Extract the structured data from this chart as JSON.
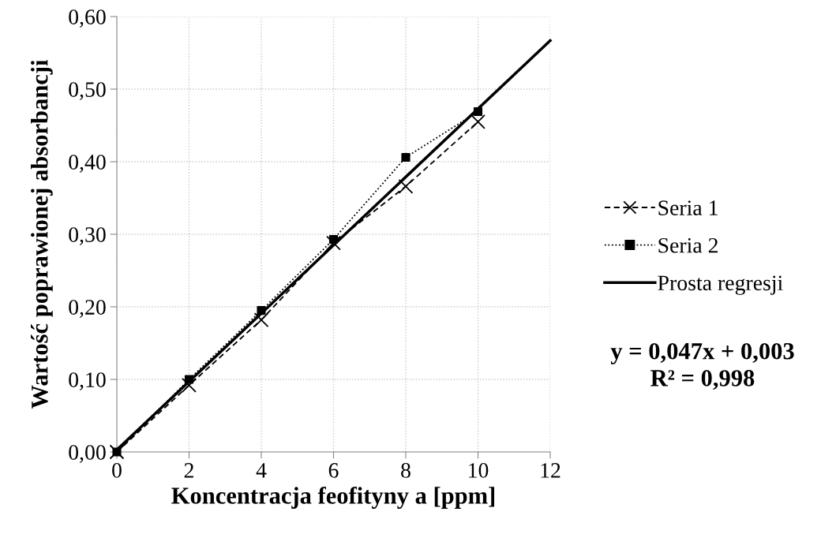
{
  "chart_data": {
    "type": "line",
    "xlabel": "Koncentracja feofityny a [ppm]",
    "ylabel": "Wartość poprawionej absorbancji",
    "x": [
      0,
      2,
      4,
      6,
      8,
      10
    ],
    "series": [
      {
        "name": "Seria 1",
        "color": "#000000",
        "values": [
          0,
          0.092,
          0.182,
          0.288,
          0.366,
          0.455
        ],
        "marker": "cross",
        "line_style": "dashed"
      },
      {
        "name": "Seria 2",
        "color": "#000000",
        "values": [
          0,
          0.1,
          0.195,
          0.293,
          0.406,
          0.469
        ],
        "marker": "square",
        "line_style": "dotted"
      },
      {
        "name": "Prosta regresji",
        "color": "#000000",
        "x": [
          0,
          12
        ],
        "values": [
          0.003,
          0.567
        ],
        "marker": "none",
        "line_style": "solid"
      }
    ],
    "annotations": [
      "y = 0,047x + 0,003\nR² = 0,998"
    ],
    "xlim": [
      0,
      12
    ],
    "xticks": [
      0,
      2,
      4,
      6,
      8,
      10,
      12
    ],
    "ylim": [
      0,
      0.6
    ],
    "yticks": [
      {
        "value": 0,
        "label": "0,00"
      },
      {
        "value": 0.1,
        "label": "0,10"
      },
      {
        "value": 0.2,
        "label": "0,20"
      },
      {
        "value": 0.3,
        "label": "0,30"
      },
      {
        "value": 0.4,
        "label": "0,40"
      },
      {
        "value": 0.5,
        "label": "0,50"
      },
      {
        "value": 0.6,
        "label": "0,60"
      }
    ],
    "grid": true,
    "legend": "right"
  }
}
